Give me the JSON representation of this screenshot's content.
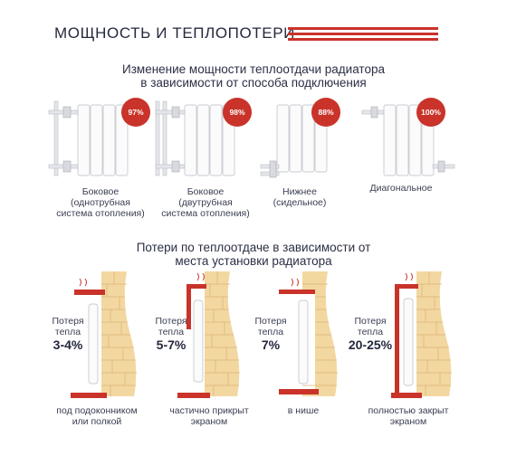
{
  "header": {
    "title": "МОЩНОСТЬ И ТЕПЛОПОТЕРИ"
  },
  "section1": {
    "title_line1": "Изменение мощности теплоотдачи радиатора",
    "title_line2": "в зависимости от способа подключения",
    "items": [
      {
        "percent": "97%",
        "caption": [
          "Боковое",
          "(однотрубная",
          "система отопления)"
        ]
      },
      {
        "percent": "98%",
        "caption": [
          "Боковое",
          "(двутрубная",
          "система отопления)"
        ]
      },
      {
        "percent": "88%",
        "caption": [
          "Нижнее",
          "(сидельное)"
        ]
      },
      {
        "percent": "100%",
        "caption": [
          "Диагональное"
        ]
      }
    ]
  },
  "section2": {
    "title_line1": "Потери по теплоотдаче в зависимости от",
    "title_line2": "места установки радиатора",
    "items": [
      {
        "label_line1": "Потеря",
        "label_line2": "тепла",
        "value": "3-4%",
        "caption": [
          "под подоконником",
          "или полкой"
        ]
      },
      {
        "label_line1": "Потеря",
        "label_line2": "тепла",
        "value": "5-7%",
        "caption": [
          "частично прикрыт",
          "экраном"
        ]
      },
      {
        "label_line1": "Потеря",
        "label_line2": "тепла",
        "value": "7%",
        "caption": [
          "в нише"
        ]
      },
      {
        "label_line1": "Потеря",
        "label_line2": "тепла",
        "value": "20-25%",
        "caption": [
          "полностью закрыт",
          "экраном"
        ]
      }
    ]
  },
  "colors": {
    "accent": "#c9332a",
    "text": "#24283c",
    "brick": "#f3d7a0",
    "pipe": "#d8dadf"
  }
}
